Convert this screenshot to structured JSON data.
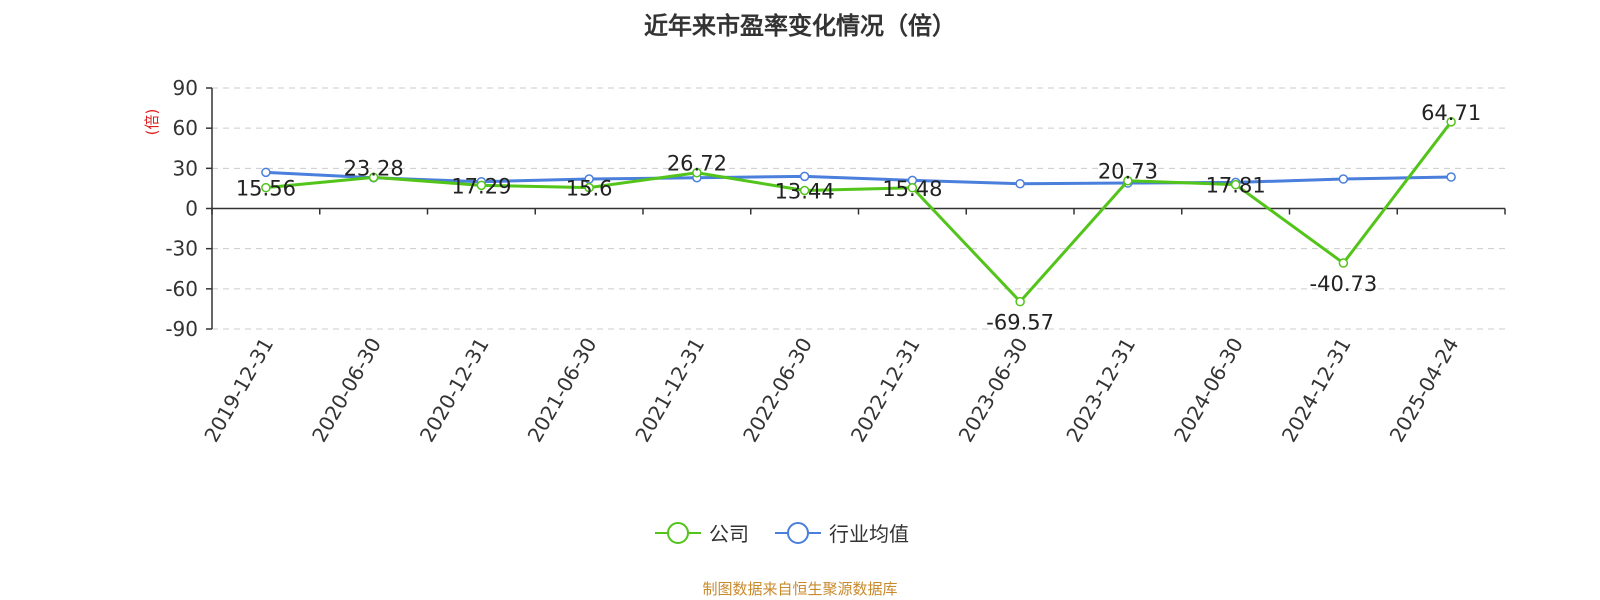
{
  "chart_data": {
    "type": "line",
    "title": "近年来市盈率变化情况（倍）",
    "ylabel": "(倍)",
    "xlabel": "",
    "categories": [
      "2019-12-31",
      "2020-06-30",
      "2020-12-31",
      "2021-06-30",
      "2021-12-31",
      "2022-06-30",
      "2022-12-31",
      "2023-06-30",
      "2023-12-31",
      "2024-06-30",
      "2024-12-31",
      "2025-04-24"
    ],
    "series": [
      {
        "name": "公司",
        "color": "#52c41a",
        "values": [
          15.56,
          23.28,
          17.29,
          15.6,
          26.72,
          13.44,
          15.48,
          -69.57,
          20.73,
          17.81,
          -40.73,
          64.71
        ],
        "labels": [
          "15.56",
          "23.28",
          "17.29",
          "15.6",
          "26.72",
          "13.44",
          "15.48",
          "-69.57",
          "20.73",
          "17.81",
          "-40.73",
          "64.71"
        ]
      },
      {
        "name": "行业均值",
        "color": "#4a7fdb",
        "values": [
          27,
          23,
          20,
          22,
          23,
          24,
          21,
          18.5,
          19,
          19.5,
          22,
          23.5
        ]
      }
    ],
    "ylim": [
      -90,
      90
    ],
    "yticks": [
      "90",
      "60",
      "30",
      "0",
      "-30",
      "-60",
      "-90"
    ],
    "grid": true,
    "legend_position": "bottom-center"
  },
  "legend": {
    "company": "公司",
    "industry": "行业均值"
  },
  "source": "制图数据来自恒生聚源数据库",
  "colors": {
    "axis_label": "#e02020",
    "source_text": "#c98a2b",
    "grid": "#cccccc"
  }
}
